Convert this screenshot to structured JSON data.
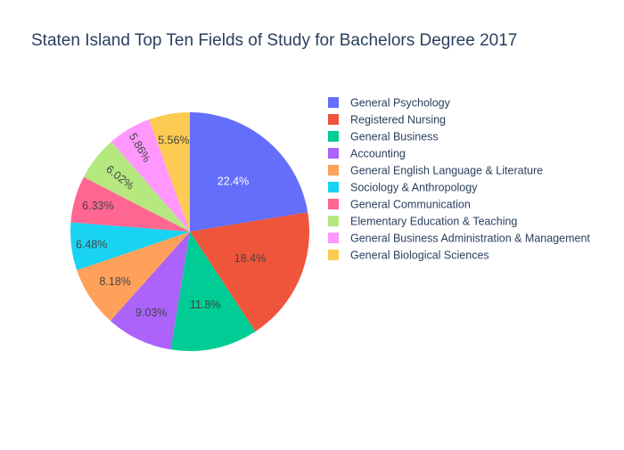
{
  "chart_data": {
    "type": "pie",
    "title": "Staten Island Top Ten Fields of Study for Bachelors Degree 2017",
    "categories": [
      "General Psychology",
      "Registered Nursing",
      "General Business",
      "Accounting",
      "General English Language & Literature",
      "Sociology & Anthropology",
      "General Communication",
      "Elementary Education & Teaching",
      "General Business Administration & Management",
      "General Biological Sciences"
    ],
    "values": [
      22.4,
      18.4,
      11.8,
      9.03,
      8.18,
      6.48,
      6.33,
      6.02,
      5.86,
      5.56
    ],
    "value_labels": [
      "22.4%",
      "18.4%",
      "11.8%",
      "9.03%",
      "8.18%",
      "6.48%",
      "6.33%",
      "6.02%",
      "5.86%",
      "5.56%"
    ],
    "colors": [
      "#636efa",
      "#EF553B",
      "#00cc96",
      "#ab63fa",
      "#FFA15A",
      "#19d3f3",
      "#FF6692",
      "#B6E880",
      "#FF97FF",
      "#FECB52"
    ],
    "label_text_colors": [
      "#ffffff",
      "#444444",
      "#444444",
      "#444444",
      "#444444",
      "#444444",
      "#444444",
      "#444444",
      "#444444",
      "#444444"
    ],
    "direction": "clockwise",
    "legend_position": "right",
    "sorted": "descending"
  }
}
